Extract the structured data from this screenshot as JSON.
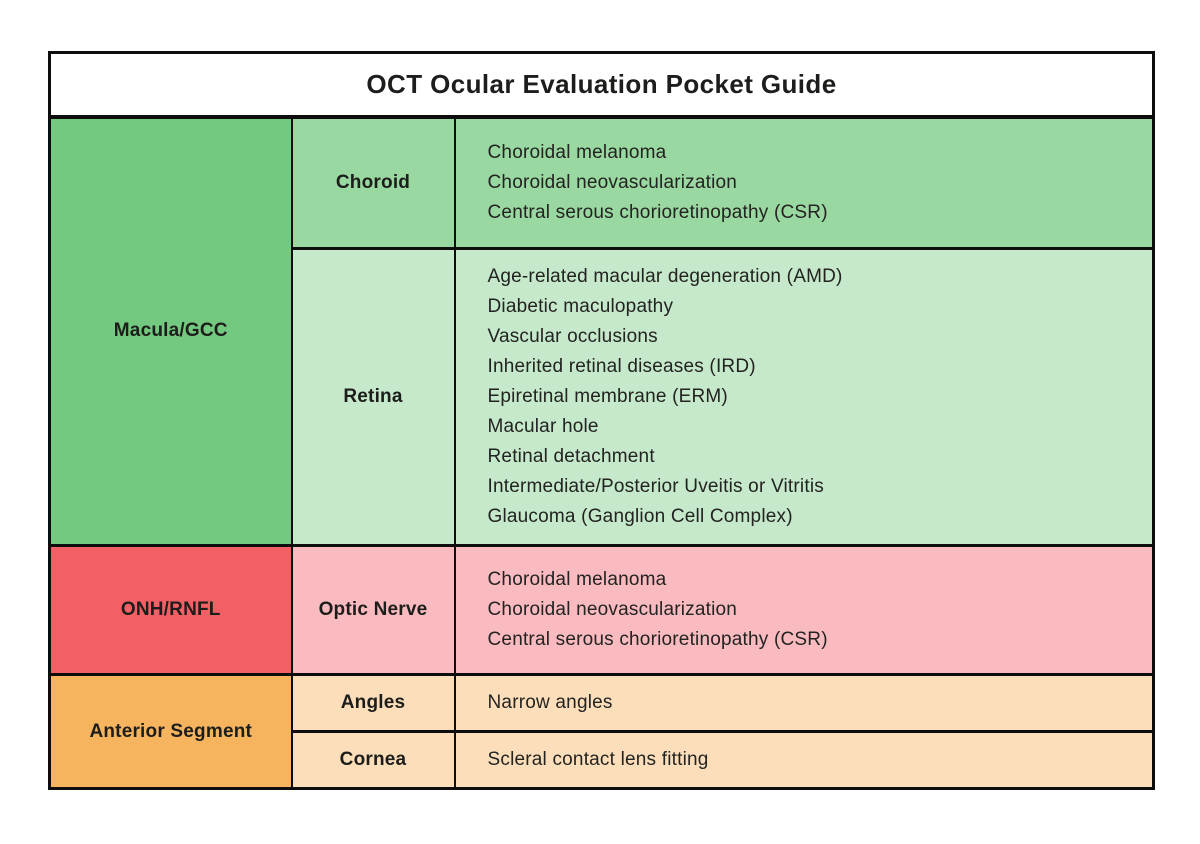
{
  "title": "OCT Ocular Evaluation Pocket Guide",
  "colors": {
    "green_dark": "#72c97f",
    "green_mid": "#9ad8a1",
    "green_light": "#c5e9ca",
    "red": "#f25f65",
    "pink": "#fabbc0",
    "orange": "#f7b45f",
    "orange_light": "#fcdfba",
    "border": "#0d0d0d",
    "text": "#1d1d1b"
  },
  "sections": [
    {
      "scan": "Macula/GCC",
      "rows": [
        {
          "structure": "Choroid",
          "findings": [
            "Choroidal melanoma",
            "Choroidal neovascularization",
            "Central serous chorioretinopathy (CSR)"
          ]
        },
        {
          "structure": "Retina",
          "findings": [
            "Age-related macular degeneration (AMD)",
            "Diabetic maculopathy",
            "Vascular occlusions",
            "Inherited retinal diseases (IRD)",
            "Epiretinal membrane (ERM)",
            "Macular hole",
            "Retinal detachment",
            "Intermediate/Posterior Uveitis or Vitritis",
            "Glaucoma (Ganglion Cell Complex)"
          ]
        }
      ]
    },
    {
      "scan": "ONH/RNFL",
      "rows": [
        {
          "structure": "Optic Nerve",
          "findings": [
            "Choroidal melanoma",
            "Choroidal neovascularization",
            "Central serous chorioretinopathy (CSR)"
          ]
        }
      ]
    },
    {
      "scan": "Anterior Segment",
      "rows": [
        {
          "structure": "Angles",
          "findings": [
            "Narrow angles"
          ]
        },
        {
          "structure": "Cornea",
          "findings": [
            "Scleral contact lens fitting"
          ]
        }
      ]
    }
  ]
}
